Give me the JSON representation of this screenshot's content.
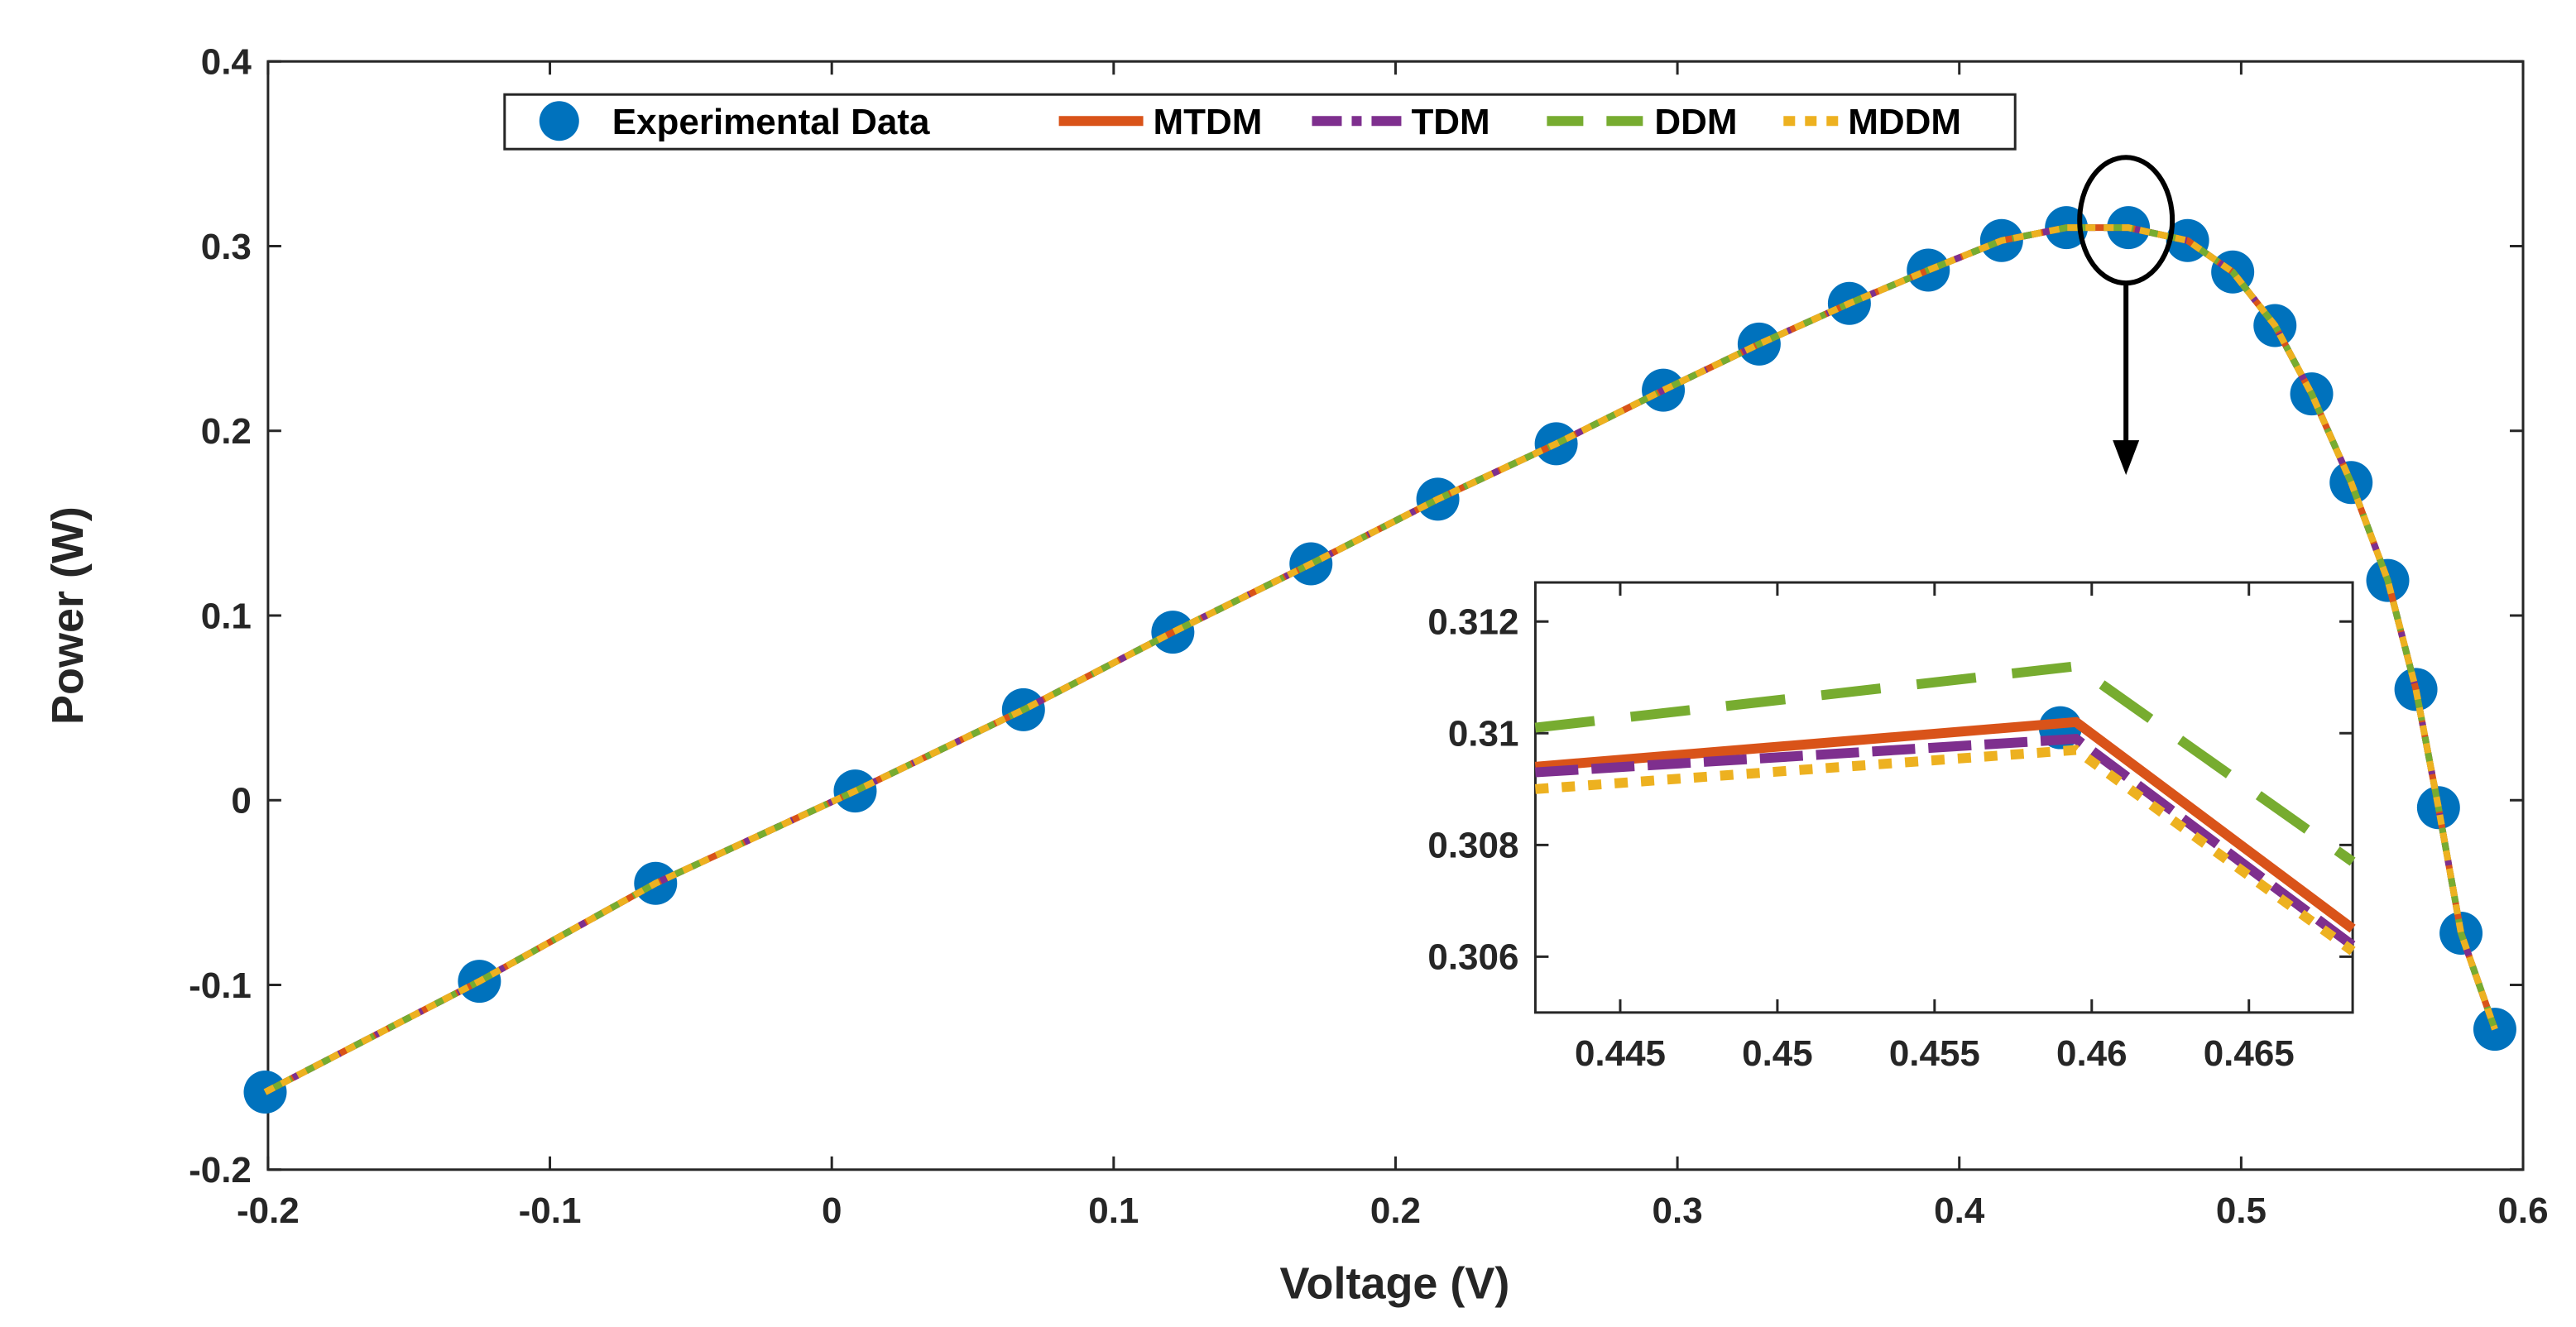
{
  "chart_data": [
    {
      "type": "line",
      "xlabel": "Voltage (V)",
      "ylabel": "Power (W)",
      "xlim": [
        -0.2,
        0.6
      ],
      "ylim": [
        -0.2,
        0.4
      ],
      "xticks": [
        "-0.2",
        "-0.1",
        "0",
        "0.1",
        "0.2",
        "0.3",
        "0.4",
        "0.5",
        "0.6"
      ],
      "yticks": [
        "-0.2",
        "-0.1",
        "0",
        "0.1",
        "0.2",
        "0.3",
        "0.4"
      ],
      "legend_position": "top",
      "series": [
        {
          "name": "Experimental Data",
          "style": "marker",
          "color": "#0072BD"
        },
        {
          "name": "MTDM",
          "style": "solid",
          "color": "#D95319"
        },
        {
          "name": "TDM",
          "style": "dashdot",
          "color": "#7E2F8E"
        },
        {
          "name": "DDM",
          "style": "dashed",
          "color": "#77AC30"
        },
        {
          "name": "MDDM",
          "style": "dotted",
          "color": "#EDB120"
        }
      ],
      "x": [
        -0.201,
        -0.125,
        -0.0625,
        0.0083,
        0.068,
        0.121,
        0.17,
        0.215,
        0.257,
        0.295,
        0.329,
        0.361,
        0.389,
        0.415,
        0.438,
        0.46,
        0.481,
        0.497,
        0.512,
        0.525,
        0.539,
        0.552,
        0.562,
        0.57,
        0.578,
        0.59
      ],
      "y": [
        -0.158,
        -0.098,
        -0.045,
        0.005,
        0.049,
        0.091,
        0.128,
        0.163,
        0.193,
        0.222,
        0.247,
        0.269,
        0.287,
        0.303,
        0.31,
        0.31,
        0.303,
        0.286,
        0.257,
        0.22,
        0.172,
        0.119,
        0.06,
        -0.004,
        -0.072,
        -0.124
      ]
    },
    {
      "type": "line",
      "xlim": [
        0.4423,
        0.4683
      ],
      "ylim": [
        0.305,
        0.3127
      ],
      "xticks": [
        "0.445",
        "0.45",
        "0.455",
        "0.46",
        "0.465"
      ],
      "yticks": [
        "0.306",
        "0.308",
        "0.31",
        "0.312"
      ],
      "x": [
        0.4423,
        0.4595,
        0.4683
      ],
      "experimental_point": {
        "x": 0.459,
        "y": 0.3101
      },
      "series": [
        {
          "name": "DDM",
          "values": [
            0.3101,
            0.3112,
            0.3077
          ]
        },
        {
          "name": "MTDM",
          "values": [
            0.3094,
            0.3102,
            0.3065
          ]
        },
        {
          "name": "TDM",
          "values": [
            0.3093,
            0.3099,
            0.3062
          ]
        },
        {
          "name": "MDDM",
          "values": [
            0.309,
            0.3097,
            0.3061
          ]
        }
      ]
    }
  ]
}
